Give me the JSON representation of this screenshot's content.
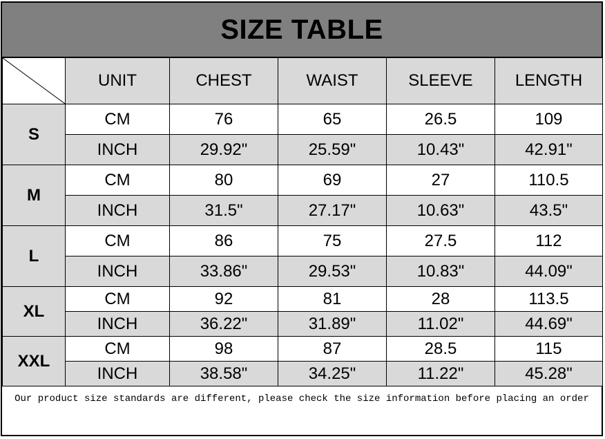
{
  "title": "SIZE TABLE",
  "headers": [
    "UNIT",
    "CHEST",
    "WAIST",
    "SLEEVE",
    "LENGTH"
  ],
  "sizes": [
    {
      "size": "S",
      "cm": {
        "unit": "CM",
        "values": [
          "76",
          "65",
          "26.5",
          "109"
        ]
      },
      "inch": {
        "unit": "INCH",
        "values": [
          "29.92\"",
          "25.59\"",
          "10.43\"",
          "42.91\""
        ]
      }
    },
    {
      "size": "M",
      "cm": {
        "unit": "CM",
        "values": [
          "80",
          "69",
          "27",
          "110.5"
        ]
      },
      "inch": {
        "unit": "INCH",
        "values": [
          "31.5\"",
          "27.17\"",
          "10.63\"",
          "43.5\""
        ]
      }
    },
    {
      "size": "L",
      "cm": {
        "unit": "CM",
        "values": [
          "86",
          "75",
          "27.5",
          "112"
        ]
      },
      "inch": {
        "unit": "INCH",
        "values": [
          "33.86\"",
          "29.53\"",
          "10.83\"",
          "44.09\""
        ]
      }
    },
    {
      "size": "XL",
      "cm": {
        "unit": "CM",
        "values": [
          "92",
          "81",
          "28",
          "113.5"
        ]
      },
      "inch": {
        "unit": "INCH",
        "values": [
          "36.22\"",
          "31.89\"",
          "11.02\"",
          "44.69\""
        ]
      }
    },
    {
      "size": "XXL",
      "cm": {
        "unit": "CM",
        "values": [
          "98",
          "87",
          "28.5",
          "115"
        ]
      },
      "inch": {
        "unit": "INCH",
        "values": [
          "38.58\"",
          "34.25\"",
          "11.22\"",
          "45.28\""
        ]
      }
    }
  ],
  "footer": "Our product size standards are different, please check the size information before placing an order",
  "colors": {
    "title_bg": "#808080",
    "shaded_cell": "#d9d9d9",
    "border": "#000000"
  }
}
